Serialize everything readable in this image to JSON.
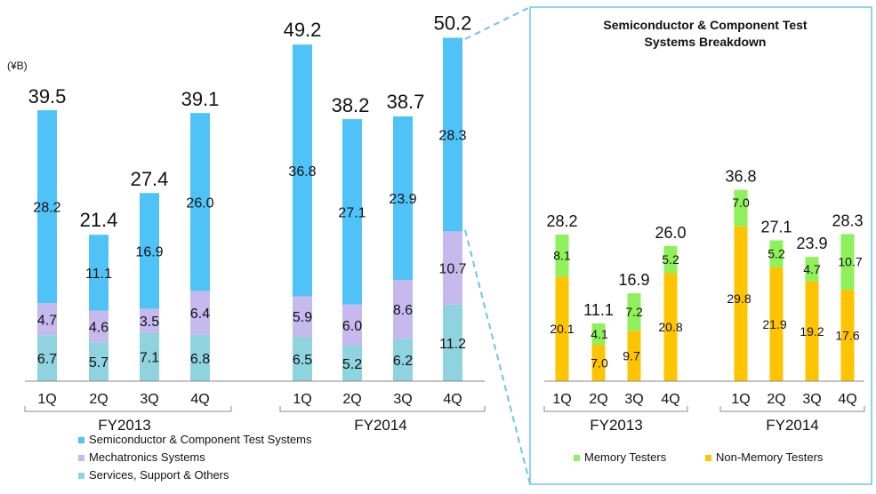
{
  "colors": {
    "semiconductor": "#4fc3f7",
    "mechatronics": "#c5b9ee",
    "services": "#8fd3df",
    "memory": "#8ef05a",
    "non_memory": "#ffc400",
    "callout_border": "#6cc6ea",
    "axis": "#888888",
    "text": "#111111"
  },
  "chart_data": [
    {
      "type": "bar",
      "stacked": true,
      "unit": "(¥B)",
      "quarters": [
        "1Q",
        "2Q",
        "3Q",
        "4Q"
      ],
      "groups": [
        "FY2013",
        "FY2014"
      ],
      "series": [
        {
          "name": "Services, Support & Others",
          "color_key": "services",
          "values": [
            6.7,
            5.7,
            7.1,
            6.8,
            6.5,
            5.2,
            6.2,
            11.2
          ]
        },
        {
          "name": "Mechatronics Systems",
          "color_key": "mechatronics",
          "values": [
            4.7,
            4.6,
            3.5,
            6.4,
            5.9,
            6.0,
            8.6,
            10.7
          ]
        },
        {
          "name": "Semiconductor & Component Test Systems",
          "color_key": "semiconductor",
          "values": [
            28.2,
            11.1,
            16.9,
            26.0,
            36.8,
            27.1,
            23.9,
            28.3
          ]
        }
      ],
      "totals": [
        39.5,
        21.4,
        27.4,
        39.1,
        49.2,
        38.2,
        38.7,
        50.2
      ],
      "legend": [
        {
          "name": "Semiconductor & Component Test Systems",
          "color_key": "semiconductor"
        },
        {
          "name": "Mechatronics Systems",
          "color_key": "mechatronics"
        },
        {
          "name": "Services, Support & Others",
          "color_key": "services"
        }
      ],
      "legend_position": "bottom-left"
    },
    {
      "type": "bar",
      "stacked": true,
      "title_lines": [
        "Semiconductor & Component Test",
        "Systems Breakdown"
      ],
      "quarters": [
        "1Q",
        "2Q",
        "3Q",
        "4Q"
      ],
      "groups": [
        "FY2013",
        "FY2014"
      ],
      "series": [
        {
          "name": "Non-Memory Testers",
          "color_key": "non_memory",
          "values": [
            20.1,
            7.0,
            9.7,
            20.8,
            29.8,
            21.9,
            19.2,
            17.6
          ]
        },
        {
          "name": "Memory Testers",
          "color_key": "memory",
          "values": [
            8.1,
            4.1,
            7.2,
            5.2,
            7.0,
            5.2,
            4.7,
            10.7
          ]
        }
      ],
      "totals": [
        28.2,
        11.1,
        16.9,
        26.0,
        36.8,
        27.1,
        23.9,
        28.3
      ],
      "legend": [
        {
          "name": "Memory Testers",
          "color_key": "memory"
        },
        {
          "name": "Non-Memory Testers",
          "color_key": "non_memory"
        }
      ],
      "legend_position": "bottom"
    }
  ]
}
